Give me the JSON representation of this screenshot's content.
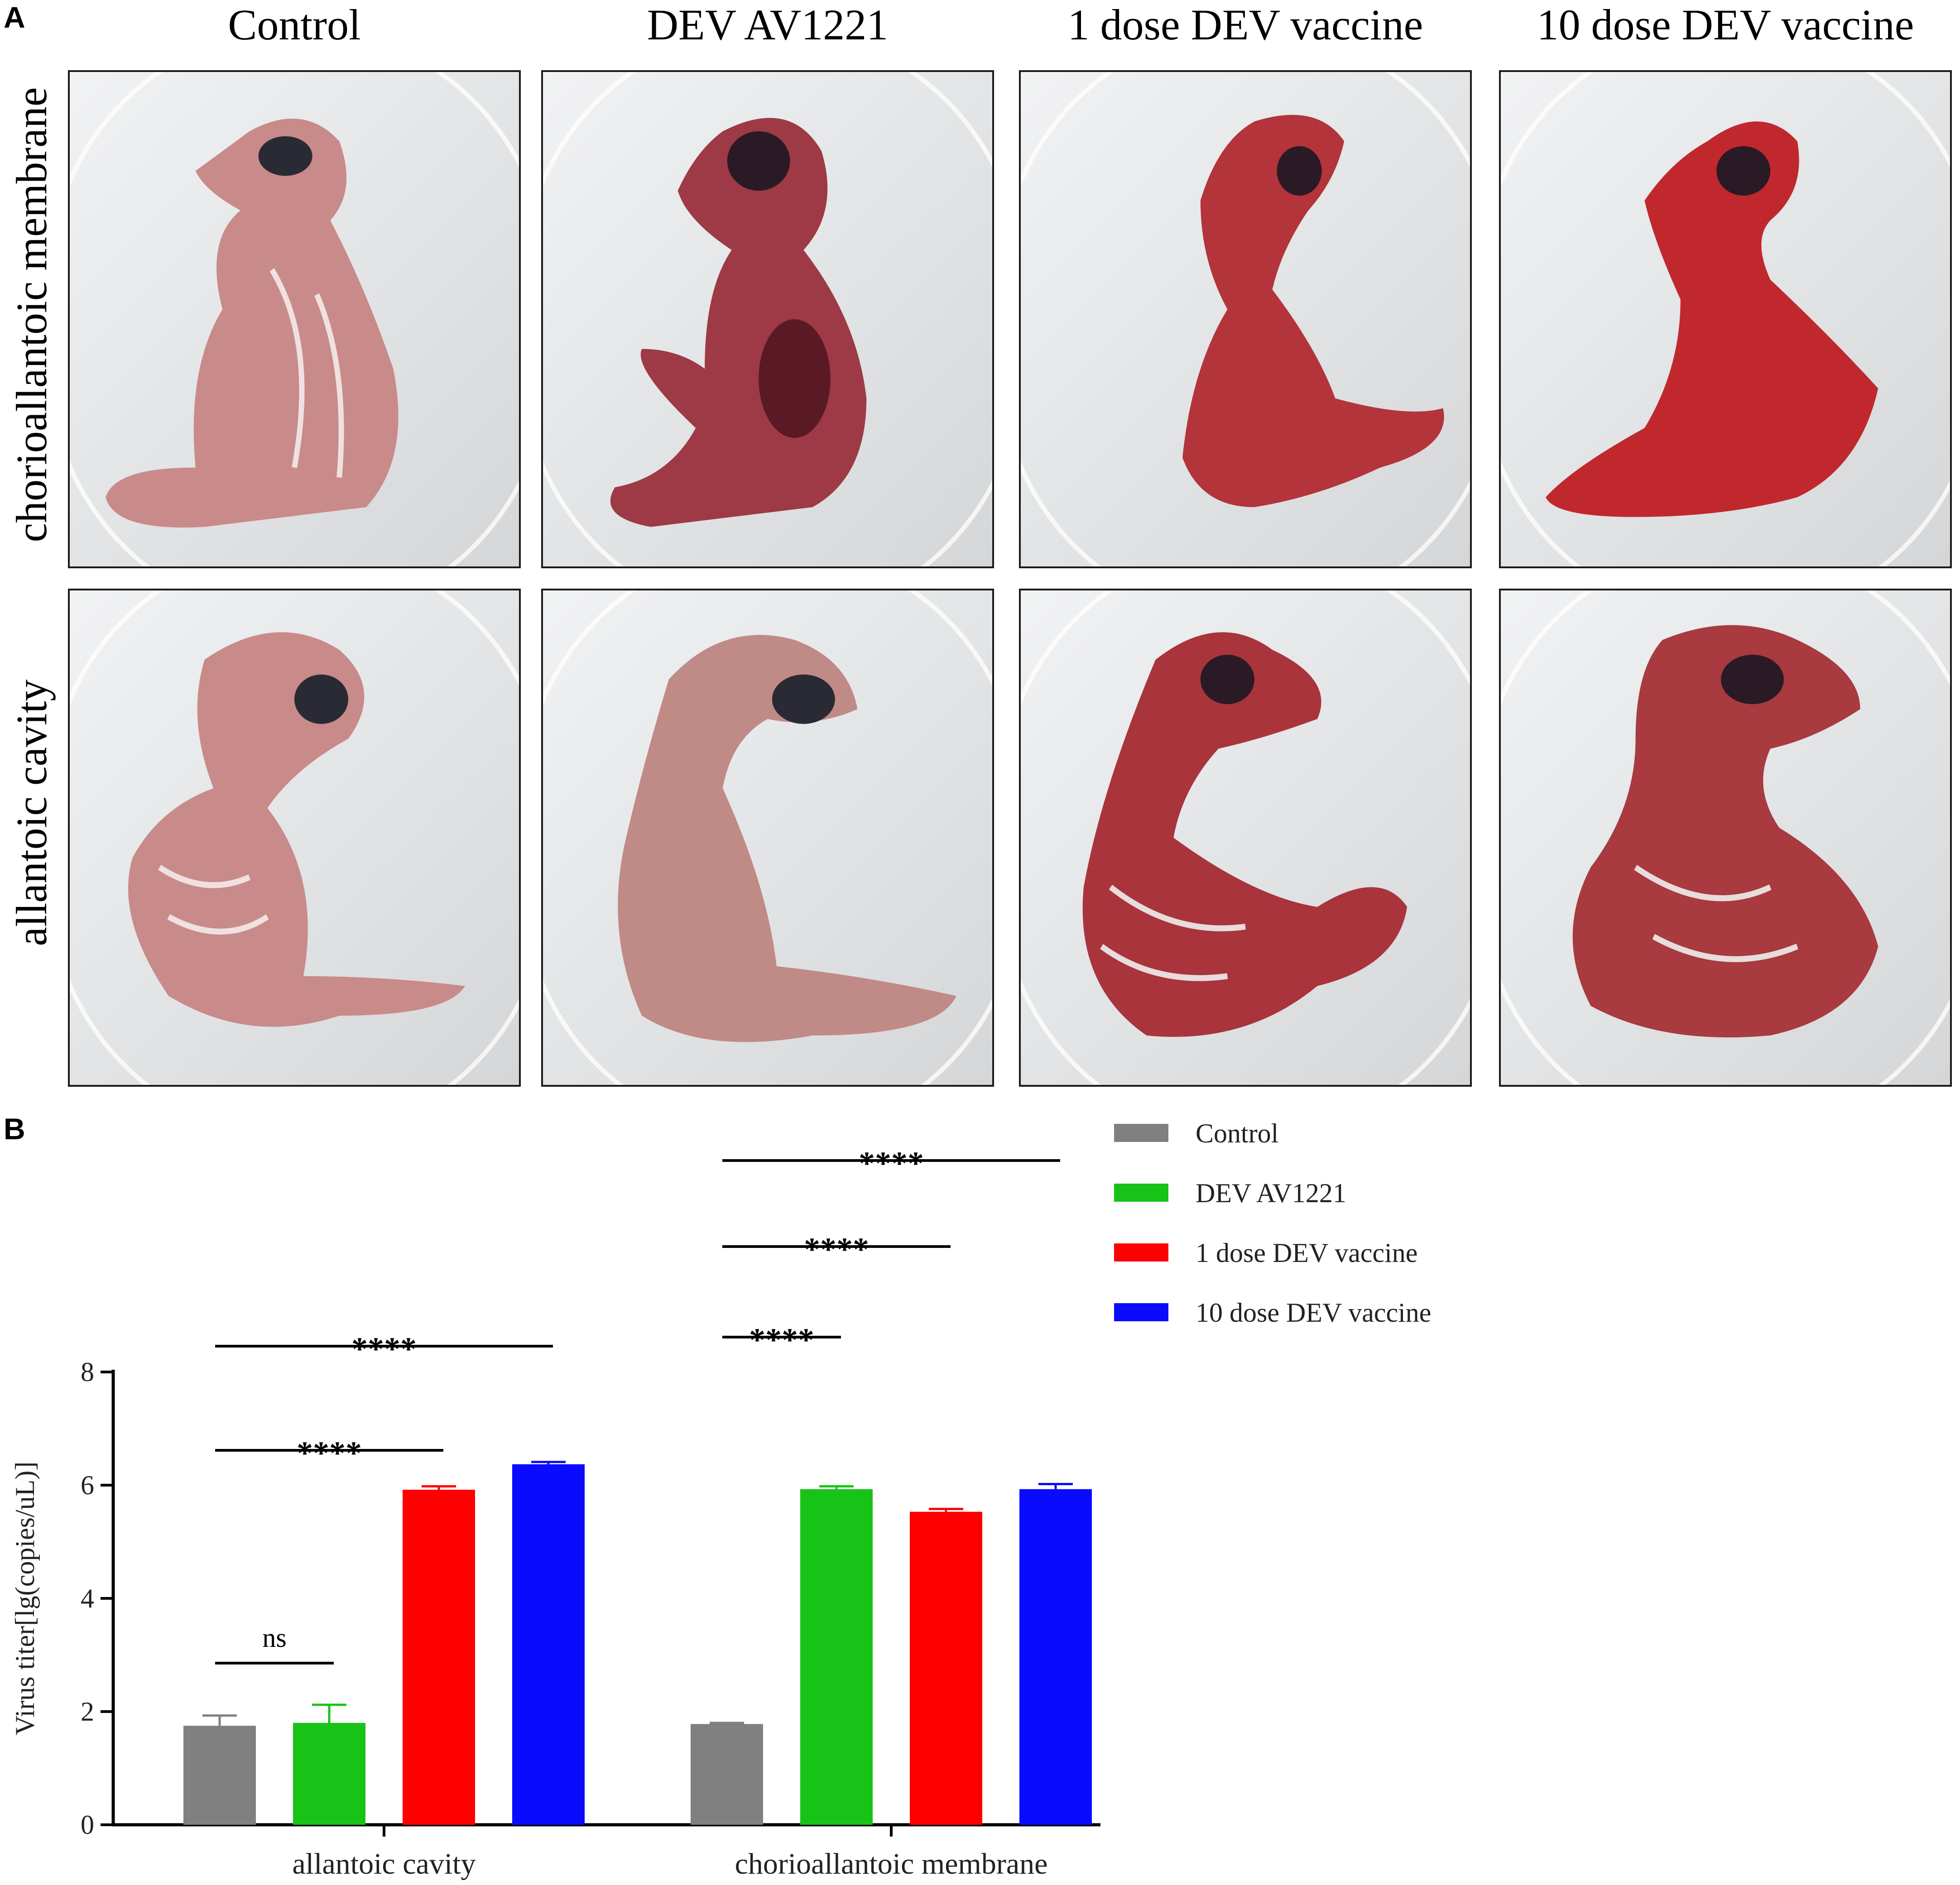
{
  "panel_a": {
    "letter": "A",
    "columns": [
      "Control",
      "DEV AV1221",
      "1 dose DEV vaccine",
      "10 dose DEV vaccine"
    ],
    "rows": [
      "chorioallantoic membrane",
      "allantoic cavity"
    ],
    "tissue_colors": [
      "#c98a8a",
      "#9e3a45",
      "#b3343a",
      "#c0282e"
    ]
  },
  "panel_b": {
    "letter": "B",
    "chart_data": {
      "type": "bar",
      "categories": [
        "allantoic cavity",
        "chorioallantoic membrane"
      ],
      "ylabel": "Virus titer[lg(copies/uL)]",
      "xlabel": "",
      "ylim": [
        0,
        8
      ],
      "yticks": [
        0,
        2,
        4,
        6,
        8
      ],
      "legend_position": "right",
      "series": [
        {
          "name": "Control",
          "color": "#808080",
          "values": [
            1.75,
            1.78
          ],
          "errors": [
            0.18,
            0.02
          ]
        },
        {
          "name": "DEV AV1221",
          "color": "#18c318",
          "values": [
            1.8,
            5.93
          ],
          "errors": [
            0.32,
            0.05
          ]
        },
        {
          "name": "1 dose DEV vaccine",
          "color": "#ff0000",
          "values": [
            5.92,
            5.53
          ],
          "errors": [
            0.06,
            0.05
          ]
        },
        {
          "name": "10 dose DEV vaccine",
          "color": "#0a0aff",
          "values": [
            6.37,
            5.93
          ],
          "errors": [
            0.04,
            0.09
          ]
        }
      ],
      "annotations": [
        {
          "group": 0,
          "from": 0,
          "to": 1,
          "label": "ns"
        },
        {
          "group": 0,
          "from": 0,
          "to": 2,
          "label": "****"
        },
        {
          "group": 0,
          "from": 0,
          "to": 3,
          "label": "****"
        },
        {
          "group": 1,
          "from": 0,
          "to": 1,
          "label": "****"
        },
        {
          "group": 1,
          "from": 0,
          "to": 2,
          "label": "****"
        },
        {
          "group": 1,
          "from": 0,
          "to": 3,
          "label": "****"
        }
      ]
    }
  }
}
